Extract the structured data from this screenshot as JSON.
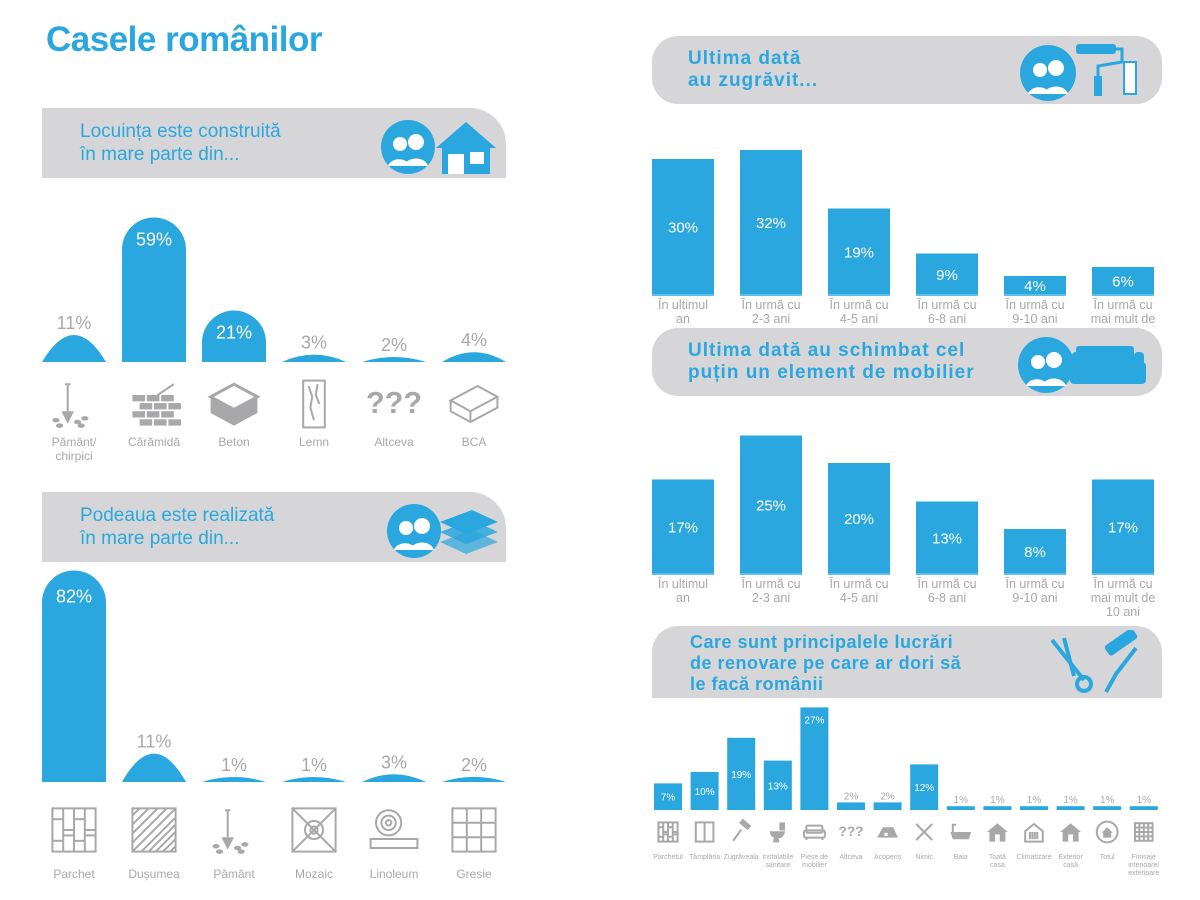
{
  "page_title": "Casele românilor",
  "colors": {
    "accent": "#2aa7de",
    "banner": "#d6d6d8",
    "muted": "#a8a8aa",
    "white": "#ffffff"
  },
  "chart_data": [
    {
      "type": "bar",
      "title": "Locuința este construită\nîn mare parte din...",
      "categories": [
        "Pământ/\nchirpici",
        "Cărămidă",
        "Beton",
        "Lemn",
        "Altceva",
        "BCA"
      ],
      "values": [
        11,
        59,
        21,
        3,
        2,
        4
      ],
      "value_labels": [
        "11%",
        "59%",
        "21%",
        "3%",
        "2%",
        "4%"
      ],
      "icons": [
        "shovel-icon",
        "brick-wall-icon",
        "concrete-block-icon",
        "wood-plank-icon",
        "question-marks-icon",
        "aac-block-icon"
      ]
    },
    {
      "type": "bar",
      "title": "Podeaua este realizată\nîn mare parte din...",
      "categories": [
        "Parchet",
        "Dușumea",
        "Pământ",
        "Mozaic",
        "Linoleum",
        "Gresie"
      ],
      "values": [
        82,
        11,
        1,
        1,
        3,
        2
      ],
      "value_labels": [
        "82%",
        "11%",
        "1%",
        "1%",
        "3%",
        "2%"
      ],
      "icons": [
        "parquet-icon",
        "floorboard-icon",
        "shovel-icon",
        "mosaic-icon",
        "linoleum-roll-icon",
        "tile-icon"
      ]
    },
    {
      "type": "bar",
      "title": "Ultima dată\nau zugrăvit...",
      "categories": [
        "În ultimul\nan",
        "În urmă cu\n2-3 ani",
        "În urmă cu\n4-5 ani",
        "În urmă cu\n6-8 ani",
        "În urmă cu\n9-10 ani",
        "În urmă cu\nmai mult de\n10 ani"
      ],
      "values": [
        30,
        32,
        19,
        9,
        4,
        6
      ],
      "value_labels": [
        "30%",
        "32%",
        "19%",
        "9%",
        "4%",
        "6%"
      ]
    },
    {
      "type": "bar",
      "title": "Ultima dată au schimbat cel\npuțin un element de mobilier",
      "categories": [
        "În ultimul\nan",
        "În urmă cu\n2-3 ani",
        "În urmă cu\n4-5 ani",
        "În urmă cu\n6-8 ani",
        "În urmă cu\n9-10 ani",
        "În urmă cu\nmai mult de\n10 ani"
      ],
      "values": [
        17,
        25,
        20,
        13,
        8,
        17
      ],
      "value_labels": [
        "17%",
        "25%",
        "20%",
        "13%",
        "8%",
        "17%"
      ]
    },
    {
      "type": "bar",
      "title": "Care sunt principalele lucrări\nde renovare pe care ar dori să\nle facă românii",
      "categories": [
        "Parchetul",
        "Tâmplăria",
        "Zugrăveala",
        "Instalațiile\nsanitare",
        "Piese de\nmobilier",
        "Altceva",
        "Acoperiș",
        "Nimic",
        "Baia",
        "Toată\ncasa",
        "Climatizare",
        "Exterior\ncasă",
        "Totul",
        "Finisaje\ninterioare/\nexterioare"
      ],
      "values": [
        7,
        10,
        19,
        13,
        27,
        2,
        2,
        12,
        1,
        1,
        1,
        1,
        1,
        1
      ],
      "value_labels": [
        "7%",
        "10%",
        "19%",
        "13%",
        "27%",
        "2%",
        "2%",
        "12%",
        "1%",
        "1%",
        "1%",
        "1%",
        "1%",
        "1%"
      ],
      "icons": [
        "parquet-icon",
        "window-icon",
        "paint-roller-icon",
        "toilet-icon",
        "sofa-icon",
        "question-marks-icon",
        "roof-icon",
        "cross-icon",
        "bathtub-icon",
        "house-icon",
        "air-conditioner-icon",
        "house-exterior-icon",
        "house-circle-icon",
        "finishes-icon"
      ]
    }
  ]
}
